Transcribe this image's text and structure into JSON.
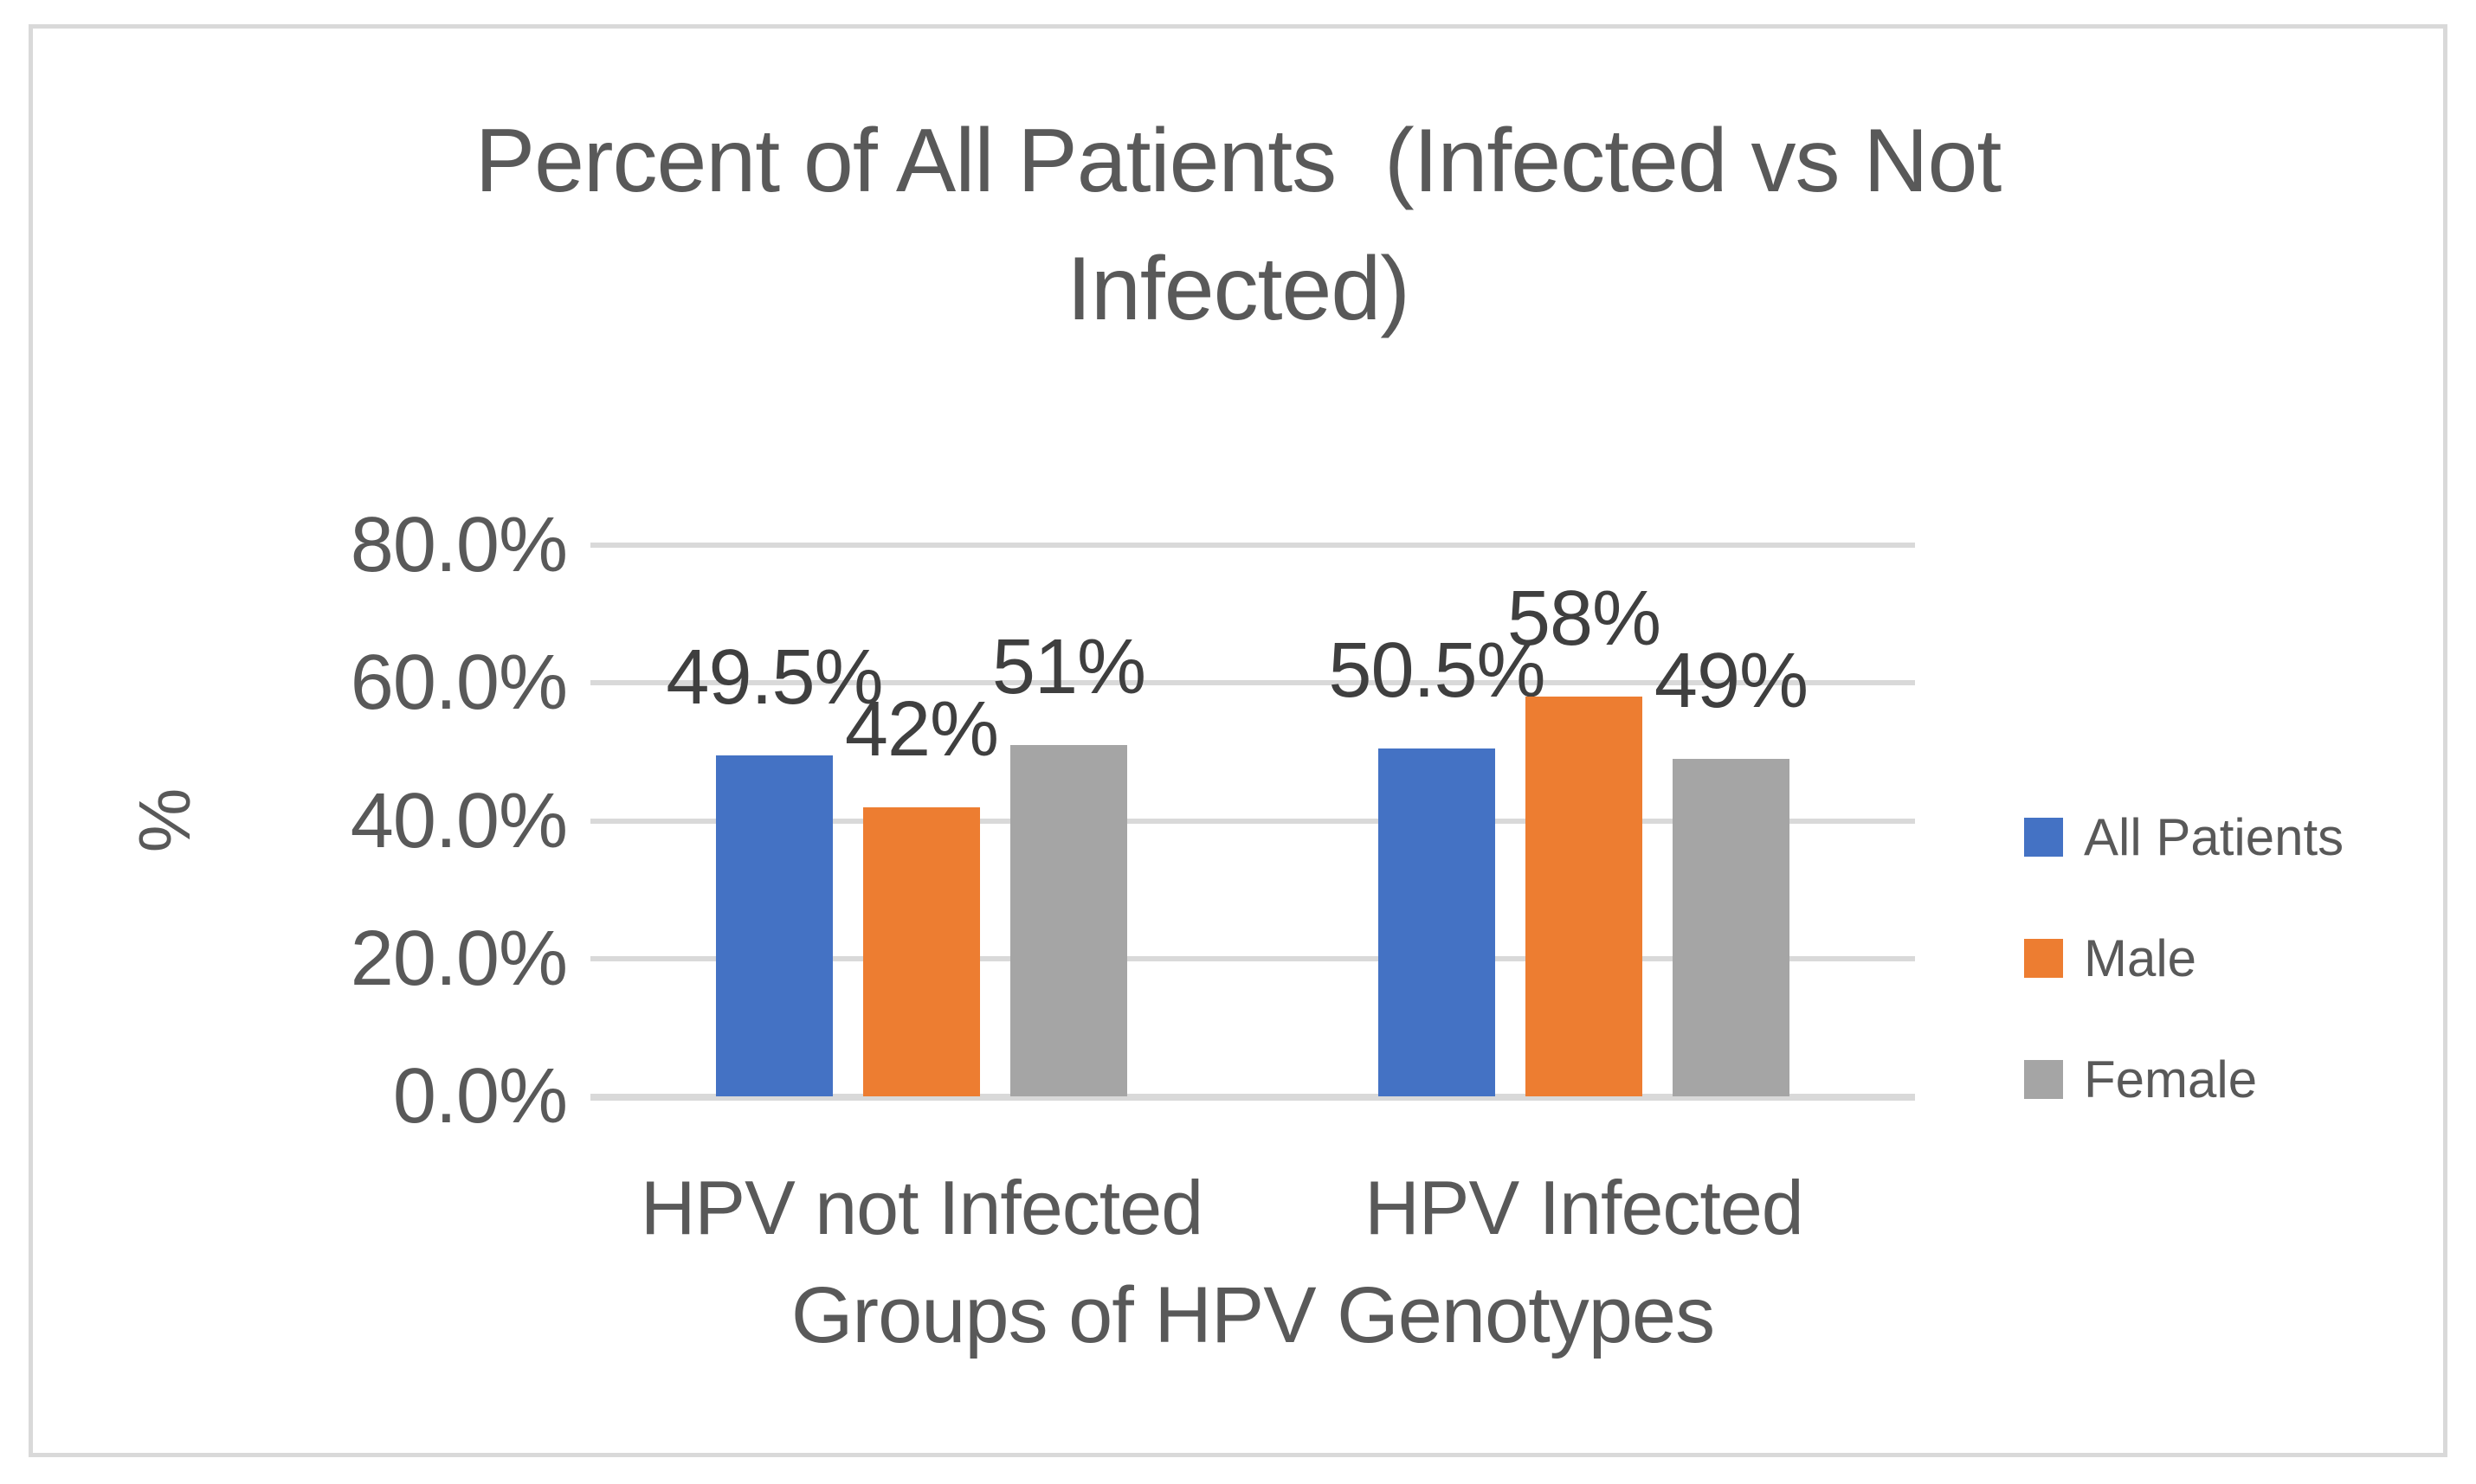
{
  "chart_data": {
    "type": "bar",
    "title": "Percent of All Patients  (Infected vs Not Infected)",
    "title_lines": [
      "Percent of All Patients  (Infected vs Not",
      "Infected)"
    ],
    "categories": [
      "HPV not Infected",
      "HPV Infected"
    ],
    "series": [
      {
        "name": "All Patients",
        "color": "#4472C4",
        "values": [
          49.5,
          50.5
        ],
        "data_labels": [
          "49.5%",
          "50.5%"
        ]
      },
      {
        "name": "Male",
        "color": "#ED7D31",
        "values": [
          42,
          58
        ],
        "data_labels": [
          "42%",
          "58%"
        ]
      },
      {
        "name": "Female",
        "color": "#A5A5A5",
        "values": [
          51,
          49
        ],
        "data_labels": [
          "51%",
          "49%"
        ]
      }
    ],
    "xlabel": "Groups of HPV Genotypes",
    "ylabel": "%",
    "ylim": [
      0,
      80
    ],
    "yticks": [
      {
        "value": 0,
        "label": "0.0%"
      },
      {
        "value": 20,
        "label": "20.0%"
      },
      {
        "value": 40,
        "label": "40.0%"
      },
      {
        "value": 60,
        "label": "60.0%"
      },
      {
        "value": 80,
        "label": "80.0%"
      }
    ],
    "grid": true,
    "legend_position": "right"
  },
  "colors": {
    "grid": "#D9D9D9",
    "frame_border": "#D9D9D9",
    "axis_text": "#595959",
    "data_label_text": "#3F3F3F",
    "background": "#FFFFFF"
  }
}
